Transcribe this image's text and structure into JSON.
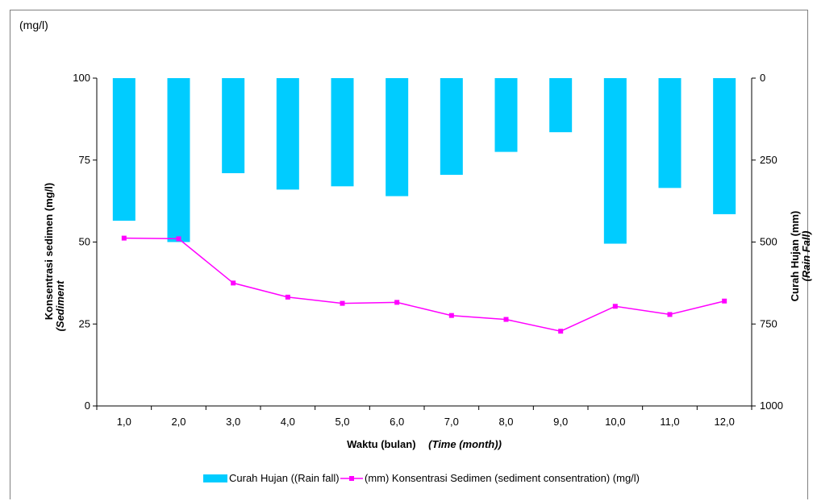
{
  "chart_data": {
    "type": "bar",
    "unit_label": "(mg/l)",
    "x": [
      "1,0",
      "2,0",
      "3,0",
      "4,0",
      "5,0",
      "6,0",
      "7,0",
      "8,0",
      "9,0",
      "10,0",
      "11,0",
      "12,0"
    ],
    "xlabel": "Waktu (bulan)",
    "xlabel_italic": "(Time (month))",
    "ylabel_left": "Konsentrasi sedimen (mg/l)",
    "ylabel_left_italic": "(Sediment",
    "ylabel_right": "Curah Hujan (mm)",
    "ylabel_right_italic": "(Rain Fall)",
    "y_left": {
      "min": 0,
      "max": 100,
      "ticks": [
        "0",
        "25",
        "50",
        "75",
        "100"
      ]
    },
    "y_right": {
      "min": 0,
      "max": 1000,
      "inverted": true,
      "ticks": [
        "0",
        "250",
        "500",
        "750",
        "1000"
      ]
    },
    "series": [
      {
        "name": "Curah Hujan ((Rain fall) (mm)",
        "kind": "bar",
        "axis": "right",
        "color": "#00ccff",
        "values": [
          435,
          500,
          290,
          340,
          330,
          360,
          295,
          225,
          165,
          505,
          335,
          415
        ]
      },
      {
        "name": "Konsentrasi Sedimen (sediment consentration) (mg/l)",
        "kind": "line",
        "axis": "left",
        "color": "#ff00ff",
        "values": [
          51.2,
          51.0,
          37.5,
          33.2,
          31.3,
          31.6,
          27.6,
          26.4,
          22.8,
          30.4,
          27.9,
          32.0
        ]
      }
    ],
    "legend": {
      "position": "bottom",
      "bar_label": "Curah Hujan ((Rain fall)",
      "line_label": "(mm) Konsentrasi Sedimen (sediment consentration) (mg/l)"
    }
  }
}
